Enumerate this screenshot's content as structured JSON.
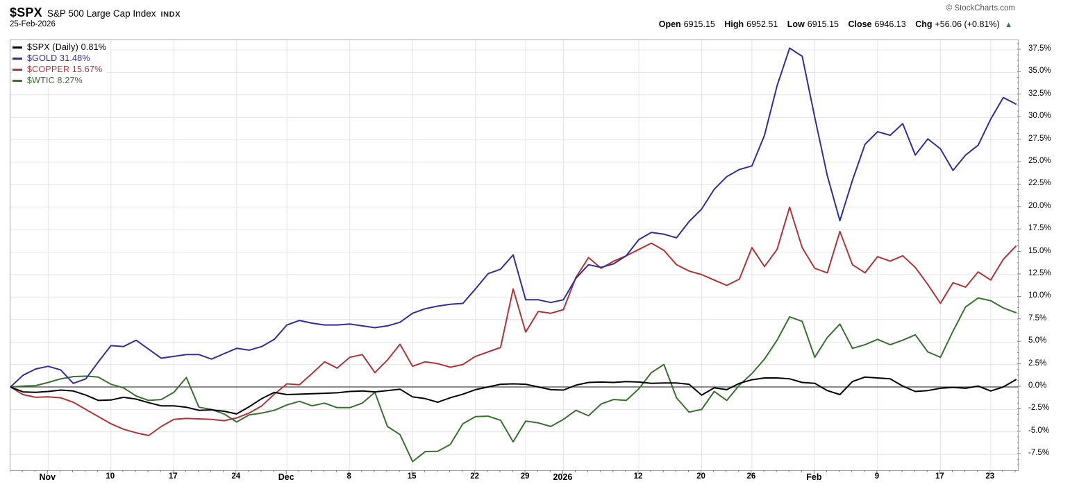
{
  "header": {
    "symbol": "$SPX",
    "title": "S&P 500 Large Cap Index",
    "exchange": "INDX",
    "date": "25-Feb-2026",
    "copyright": "© StockCharts.com"
  },
  "quote": {
    "open_label": "Open",
    "open": "6915.15",
    "high_label": "High",
    "high": "6952.51",
    "low_label": "Low",
    "low": "6915.15",
    "close_label": "Close",
    "close": "6946.13",
    "chg_label": "Chg",
    "chg": "+56.06 (+0.81%)",
    "direction_icon": "▲",
    "up_color": "#2e7d32"
  },
  "chart_data": {
    "type": "line",
    "title": "$SPX vs $GOLD vs $COPPER vs $WTIC percent performance",
    "xlabel": "",
    "ylabel": "",
    "y_unit": "%",
    "ylim": [
      -9.26,
      38.58
    ],
    "grid": true,
    "legend_position": "top-left",
    "zero_line": 0,
    "y_ticks": [
      37.5,
      35.0,
      32.5,
      30.0,
      27.5,
      25.0,
      22.5,
      20.0,
      17.5,
      15.0,
      12.5,
      10.0,
      7.5,
      5.0,
      2.5,
      0.0,
      -2.5,
      -5.0,
      -7.5
    ],
    "y_tick_labels": [
      "37.5%",
      "35.0%",
      "32.5%",
      "30.0%",
      "27.5%",
      "25.0%",
      "22.5%",
      "20.0%",
      "17.5%",
      "15.0%",
      "12.5%",
      "10.0%",
      "7.5%",
      "5.0%",
      "2.5%",
      "0.0%",
      "-2.5%",
      "-5.0%",
      "-7.5%"
    ],
    "x_ticks": [
      {
        "index": 3,
        "label": "Nov",
        "bold": true
      },
      {
        "index": 8,
        "label": "10",
        "bold": false
      },
      {
        "index": 13,
        "label": "17",
        "bold": false
      },
      {
        "index": 18,
        "label": "24",
        "bold": false
      },
      {
        "index": 22,
        "label": "Dec",
        "bold": true
      },
      {
        "index": 27,
        "label": "8",
        "bold": false
      },
      {
        "index": 32,
        "label": "15",
        "bold": false
      },
      {
        "index": 37,
        "label": "22",
        "bold": false
      },
      {
        "index": 41,
        "label": "29",
        "bold": false
      },
      {
        "index": 44,
        "label": "2026",
        "bold": true
      },
      {
        "index": 50,
        "label": "12",
        "bold": false
      },
      {
        "index": 55,
        "label": "20",
        "bold": false
      },
      {
        "index": 59,
        "label": "26",
        "bold": false
      },
      {
        "index": 64,
        "label": "Feb",
        "bold": true
      },
      {
        "index": 69,
        "label": "9",
        "bold": false
      },
      {
        "index": 74,
        "label": "17",
        "bold": false
      },
      {
        "index": 78,
        "label": "23",
        "bold": false
      }
    ],
    "dates": [
      "Oct 29",
      "Oct 30",
      "Oct 31",
      "Nov 3",
      "Nov 4",
      "Nov 5",
      "Nov 6",
      "Nov 7",
      "Nov 10",
      "Nov 11",
      "Nov 12",
      "Nov 13",
      "Nov 14",
      "Nov 17",
      "Nov 18",
      "Nov 19",
      "Nov 20",
      "Nov 21",
      "Nov 24",
      "Nov 25",
      "Nov 26",
      "Nov 28",
      "Dec 1",
      "Dec 2",
      "Dec 3",
      "Dec 4",
      "Dec 5",
      "Dec 8",
      "Dec 9",
      "Dec 10",
      "Dec 11",
      "Dec 12",
      "Dec 15",
      "Dec 16",
      "Dec 17",
      "Dec 18",
      "Dec 19",
      "Dec 22",
      "Dec 23",
      "Dec 24",
      "Dec 26",
      "Dec 29",
      "Dec 30",
      "Dec 31",
      "Jan 2",
      "Jan 5",
      "Jan 6",
      "Jan 7",
      "Jan 8",
      "Jan 9",
      "Jan 12",
      "Jan 13",
      "Jan 14",
      "Jan 15",
      "Jan 16",
      "Jan 20",
      "Jan 21",
      "Jan 22",
      "Jan 23",
      "Jan 26",
      "Jan 27",
      "Jan 28",
      "Jan 29",
      "Jan 30",
      "Feb 2",
      "Feb 3",
      "Feb 4",
      "Feb 5",
      "Feb 6",
      "Feb 9",
      "Feb 10",
      "Feb 11",
      "Feb 12",
      "Feb 13",
      "Feb 17",
      "Feb 18",
      "Feb 19",
      "Feb 20",
      "Feb 23",
      "Feb 24",
      "Feb 25"
    ],
    "series": [
      {
        "name": "$SPX",
        "legend_label": "$SPX (Daily) 0.81%",
        "final_value": 0.81,
        "color": "#000000",
        "values": [
          0,
          -0.55,
          -0.6,
          -0.5,
          -0.35,
          -0.45,
          -0.9,
          -1.5,
          -1.45,
          -1.15,
          -1.35,
          -1.75,
          -2.1,
          -2.1,
          -2.25,
          -2.6,
          -2.55,
          -2.7,
          -3.0,
          -2.2,
          -1.3,
          -0.6,
          -0.85,
          -0.8,
          -0.75,
          -0.7,
          -0.65,
          -0.5,
          -0.45,
          -0.55,
          -0.4,
          -0.25,
          -1.1,
          -1.3,
          -1.7,
          -1.2,
          -0.8,
          -0.3,
          0.0,
          0.3,
          0.35,
          0.3,
          0.0,
          -0.3,
          -0.35,
          0.2,
          0.5,
          0.55,
          0.5,
          0.6,
          0.55,
          0.4,
          0.45,
          0.45,
          0.3,
          -0.9,
          -0.1,
          -0.3,
          0.4,
          0.8,
          1.0,
          1.0,
          0.9,
          0.5,
          0.4,
          -0.4,
          -0.85,
          0.6,
          1.1,
          1.0,
          0.9,
          0.1,
          -0.5,
          -0.4,
          -0.15,
          -0.05,
          -0.15,
          0.1,
          -0.45,
          0.0,
          0.81
        ]
      },
      {
        "name": "$GOLD",
        "legend_label": "$GOLD 31.48%",
        "final_value": 31.48,
        "color": "#2d2da0",
        "values": [
          0,
          1.3,
          2.0,
          2.3,
          1.9,
          0.4,
          0.9,
          2.8,
          4.6,
          4.5,
          5.2,
          4.2,
          3.2,
          3.4,
          3.6,
          3.6,
          3.1,
          3.7,
          4.3,
          4.1,
          4.5,
          5.3,
          6.9,
          7.4,
          7.1,
          6.9,
          6.9,
          7.0,
          6.8,
          6.6,
          6.8,
          7.2,
          8.2,
          8.7,
          9.0,
          9.2,
          9.3,
          10.9,
          12.6,
          13.1,
          14.7,
          9.7,
          9.7,
          9.4,
          9.7,
          12.1,
          13.6,
          13.3,
          13.7,
          14.6,
          16.4,
          17.2,
          17.0,
          16.6,
          18.4,
          19.8,
          22.0,
          23.4,
          24.2,
          24.6,
          28.0,
          33.5,
          37.7,
          36.8,
          30.0,
          23.5,
          18.5,
          23.0,
          27.0,
          28.4,
          28.0,
          29.3,
          25.8,
          27.6,
          26.5,
          24.1,
          25.8,
          26.9,
          29.8,
          32.2,
          31.48
        ]
      },
      {
        "name": "$COPPER",
        "legend_label": "$COPPER 15.67%",
        "final_value": 15.67,
        "color": "#b43236",
        "values": [
          0,
          -0.85,
          -1.15,
          -1.1,
          -1.2,
          -1.7,
          -2.5,
          -3.3,
          -4.1,
          -4.7,
          -5.1,
          -5.4,
          -4.4,
          -3.6,
          -3.5,
          -3.55,
          -3.6,
          -3.75,
          -3.45,
          -2.9,
          -2.1,
          -0.8,
          0.35,
          0.25,
          1.5,
          2.8,
          2.1,
          3.3,
          3.6,
          1.6,
          3.0,
          4.75,
          2.3,
          2.8,
          2.6,
          2.2,
          2.5,
          3.4,
          3.9,
          4.4,
          10.9,
          6.1,
          8.4,
          8.2,
          8.6,
          12.2,
          14.4,
          13.2,
          14.0,
          14.6,
          15.3,
          16.0,
          15.2,
          13.6,
          12.9,
          12.5,
          11.9,
          11.3,
          12.0,
          15.5,
          13.4,
          15.3,
          20.0,
          15.5,
          13.2,
          12.7,
          17.3,
          13.6,
          12.7,
          14.5,
          14.0,
          14.6,
          13.3,
          11.4,
          9.3,
          11.6,
          11.1,
          12.8,
          11.9,
          14.2,
          15.67
        ]
      },
      {
        "name": "$WTIC",
        "legend_label": "$WTIC 8.27%",
        "final_value": 8.27,
        "color": "#37702f",
        "values": [
          0,
          0.1,
          0.15,
          0.5,
          0.9,
          1.15,
          1.2,
          1.1,
          0.3,
          -0.1,
          -1.0,
          -1.5,
          -1.4,
          -0.6,
          1.05,
          -2.25,
          -2.5,
          -3.0,
          -3.9,
          -3.1,
          -2.9,
          -2.6,
          -2.0,
          -1.6,
          -2.1,
          -1.8,
          -2.3,
          -2.3,
          -1.8,
          -0.6,
          -4.4,
          -5.3,
          -8.3,
          -7.2,
          -7.15,
          -6.4,
          -4.1,
          -3.3,
          -3.25,
          -3.7,
          -6.1,
          -3.8,
          -4.0,
          -4.4,
          -3.6,
          -2.6,
          -3.2,
          -1.9,
          -1.4,
          -1.5,
          -0.2,
          1.6,
          2.5,
          -1.2,
          -2.8,
          -2.5,
          -0.5,
          -1.5,
          0.2,
          1.5,
          3.1,
          5.2,
          7.8,
          7.3,
          3.3,
          5.5,
          7.0,
          4.3,
          4.7,
          5.3,
          4.7,
          5.2,
          5.8,
          3.9,
          3.3,
          6.2,
          8.9,
          9.9,
          9.6,
          8.8,
          8.27
        ]
      }
    ],
    "colors": {
      "grid": "#e4e4e4",
      "zero_line": "#444444",
      "frame": "#a6a6a6"
    }
  }
}
